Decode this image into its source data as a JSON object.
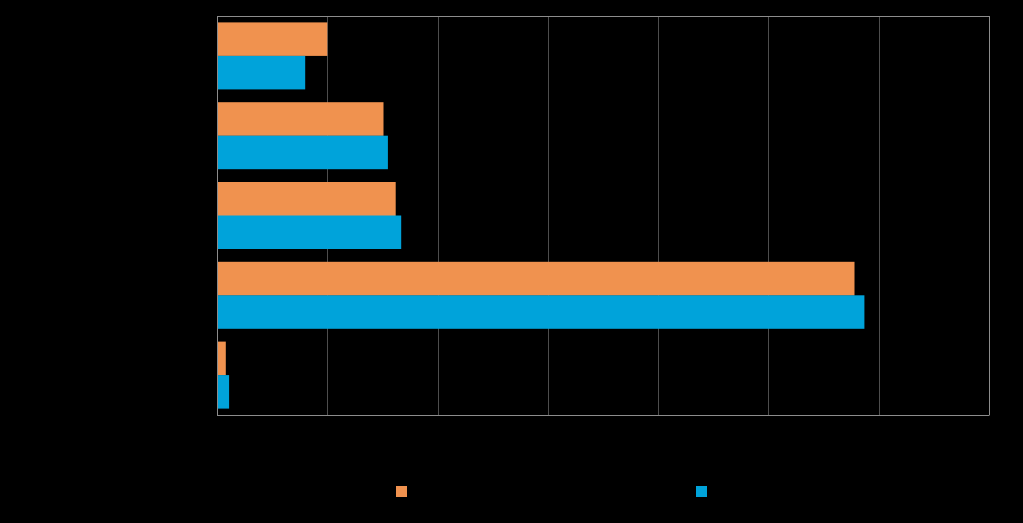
{
  "chart_data": {
    "type": "bar",
    "orientation": "horizontal",
    "title": "",
    "xlabel": "",
    "ylabel": "",
    "categories": [
      "",
      "",
      "",
      "",
      ""
    ],
    "series": [
      {
        "color": "#F0924F",
        "values": [
          100,
          151,
          162,
          578,
          8
        ]
      },
      {
        "color": "#00A3DA",
        "values": [
          80,
          155,
          167,
          587,
          11
        ]
      }
    ],
    "xlim": [
      0,
      700
    ],
    "xticks": [
      0,
      100,
      200,
      300,
      400,
      500,
      600,
      700
    ],
    "grid": true,
    "gridline_color": "#4d4d4d",
    "axis_color": "#8c8c8c",
    "background": "#000000",
    "legend": "bottom"
  }
}
